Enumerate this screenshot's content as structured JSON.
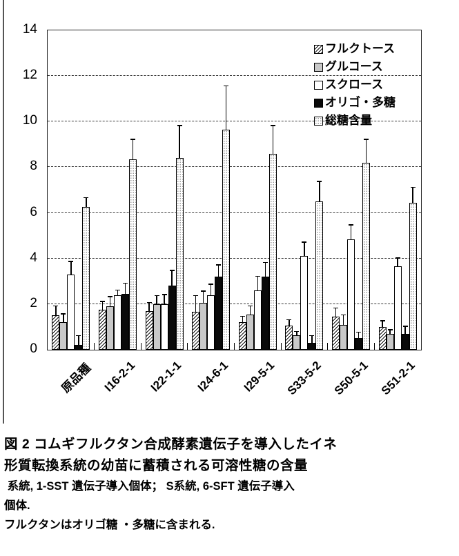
{
  "figure": {
    "title_line1": "図 2 コムギフルクタン合成酵素遺伝子を導入したイネ",
    "title_line2": "形質転換系統の幼苗に蓄積される可溶性糖の含量",
    "note_line1": " 系統, 1-SST 遺伝子導入個体； S系統, 6-SFT 遺伝子導入",
    "note_line2": "個体.",
    "note_line3": "フルクタンはオリゴ糖 ・多糖に含まれる."
  },
  "chart_data": {
    "type": "bar",
    "title": "",
    "xlabel": "",
    "ylabel": "",
    "ylim": [
      0,
      14
    ],
    "yticks": [
      0,
      2,
      4,
      6,
      8,
      10,
      12,
      14
    ],
    "grid": "horizontal-dashed",
    "legend_position": "top-right-inside",
    "error_bars": "upper-only",
    "categories": [
      "原品種",
      "I16-2-1",
      "I22-1-1",
      "I24-6-1",
      "I29-5-1",
      "S33-5-2",
      "S50-5-1",
      "S51-2-1"
    ],
    "series": [
      {
        "name": "フルクトース",
        "pattern": "hatch",
        "values": [
          1.5,
          1.75,
          1.7,
          1.65,
          1.2,
          1.05,
          1.45,
          1.0
        ],
        "error_top": [
          1.9,
          2.1,
          2.05,
          2.35,
          1.45,
          1.3,
          1.8,
          1.25
        ]
      },
      {
        "name": "グルコース",
        "pattern": "gray",
        "values": [
          1.2,
          1.9,
          2.0,
          2.05,
          1.55,
          0.65,
          1.1,
          0.7
        ],
        "error_top": [
          1.55,
          2.3,
          2.35,
          2.55,
          1.9,
          0.78,
          1.5,
          0.85
        ]
      },
      {
        "name": "スクロース",
        "pattern": "white",
        "values": [
          3.3,
          2.4,
          2.0,
          2.4,
          2.6,
          4.1,
          4.85,
          3.65
        ],
        "error_top": [
          3.85,
          2.6,
          2.4,
          2.85,
          3.2,
          4.7,
          5.45,
          4.0
        ]
      },
      {
        "name": "オリゴ・多糖",
        "pattern": "black",
        "values": [
          0.2,
          2.45,
          2.8,
          3.2,
          3.2,
          0.3,
          0.5,
          0.7
        ],
        "error_top": [
          0.6,
          2.9,
          3.45,
          3.7,
          3.8,
          0.6,
          0.75,
          1.0
        ]
      },
      {
        "name": "総糖含量",
        "pattern": "dots",
        "values": [
          6.25,
          8.35,
          8.4,
          9.65,
          8.6,
          6.5,
          8.2,
          6.45
        ],
        "error_top": [
          6.65,
          9.2,
          9.8,
          11.55,
          9.8,
          7.35,
          9.2,
          7.1
        ]
      }
    ],
    "colors": {
      "gray_fill": "#c9c9c9",
      "black_fill": "#0a0a0a",
      "white_fill": "#ffffff",
      "line": "#000000"
    }
  }
}
